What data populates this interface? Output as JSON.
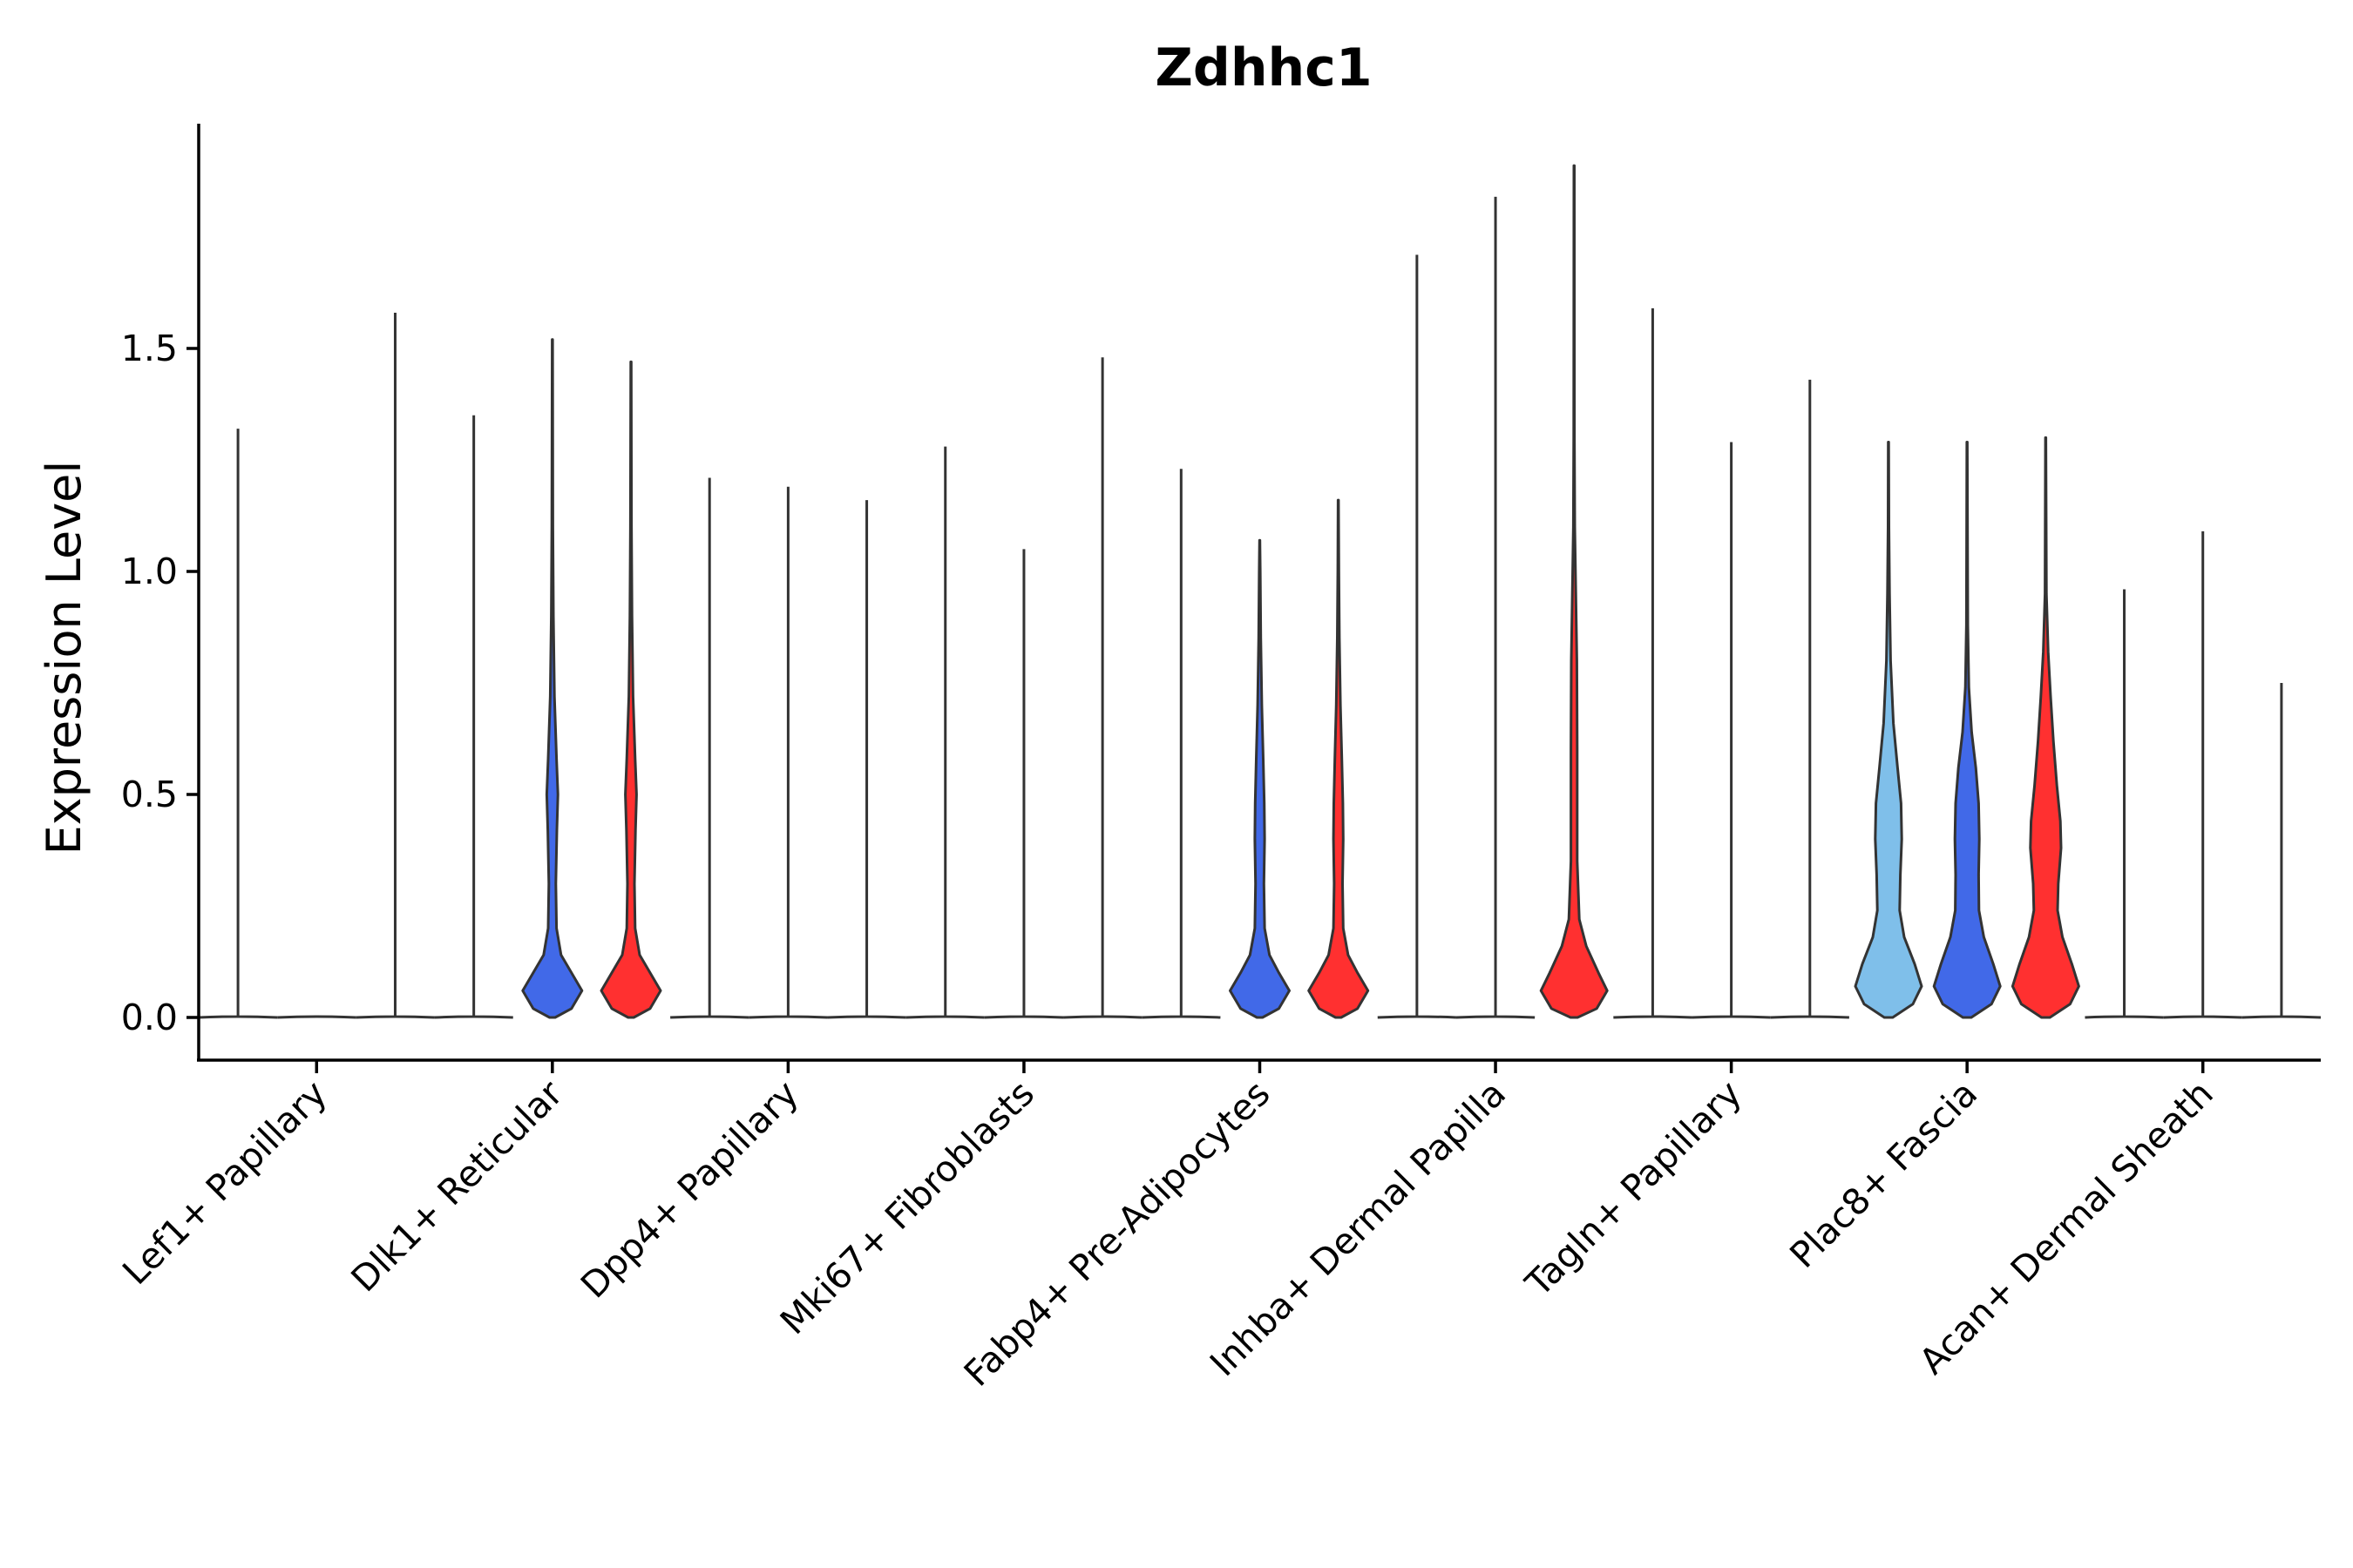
{
  "chart_data": {
    "type": "violin",
    "title": "Zdhhc1",
    "xlabel": "",
    "ylabel": "Expression Level",
    "ylim": [
      -0.1,
      2.0
    ],
    "yticks": [
      0.0,
      0.5,
      1.0,
      1.5
    ],
    "ytick_labels": [
      "0.0",
      "0.5",
      "1.0",
      "1.5"
    ],
    "grid": false,
    "legend": "none",
    "groups_per_category": 3,
    "categories": [
      "Lef1+ Papillary",
      "Dlk1+ Reticular",
      "Dpp4+ Papillary",
      "Mki67+ Fibroblasts",
      "Fabp4+ Pre-Adipocytes",
      "Inhba+ Dermal Papilla",
      "Tagln+ Papillary",
      "Plac8+ Fascia",
      "Acan+ Dermal Sheath"
    ],
    "colors": {
      "light_blue": "#7fbfea",
      "blue": "#4169e8",
      "red": "#ff3030",
      "outline": "#333333"
    },
    "violins": [
      {
        "category": "Lef1+ Papillary",
        "slot": 1,
        "max": 1.32,
        "shape": "flat",
        "fill": "none"
      },
      {
        "category": "Lef1+ Papillary",
        "slot": 2,
        "max": 0.0,
        "shape": "flat",
        "fill": "none"
      },
      {
        "category": "Lef1+ Papillary",
        "slot": 3,
        "max": 1.58,
        "shape": "flat",
        "fill": "none"
      },
      {
        "category": "Dlk1+ Reticular",
        "slot": 1,
        "max": 1.35,
        "shape": "flat",
        "fill": "none"
      },
      {
        "category": "Dlk1+ Reticular",
        "slot": 2,
        "max": 1.52,
        "shape": "A",
        "fill": "blue"
      },
      {
        "category": "Dlk1+ Reticular",
        "slot": 3,
        "max": 1.47,
        "shape": "A",
        "fill": "red"
      },
      {
        "category": "Dpp4+ Papillary",
        "slot": 1,
        "max": 1.21,
        "shape": "flat",
        "fill": "none"
      },
      {
        "category": "Dpp4+ Papillary",
        "slot": 2,
        "max": 1.19,
        "shape": "flat",
        "fill": "none"
      },
      {
        "category": "Dpp4+ Papillary",
        "slot": 3,
        "max": 1.16,
        "shape": "flat",
        "fill": "none"
      },
      {
        "category": "Mki67+ Fibroblasts",
        "slot": 1,
        "max": 1.28,
        "shape": "flat",
        "fill": "none"
      },
      {
        "category": "Mki67+ Fibroblasts",
        "slot": 2,
        "max": 1.05,
        "shape": "flat",
        "fill": "none"
      },
      {
        "category": "Mki67+ Fibroblasts",
        "slot": 3,
        "max": 1.48,
        "shape": "flat",
        "fill": "none"
      },
      {
        "category": "Fabp4+ Pre-Adipocytes",
        "slot": 1,
        "max": 1.23,
        "shape": "flat",
        "fill": "none"
      },
      {
        "category": "Fabp4+ Pre-Adipocytes",
        "slot": 2,
        "max": 1.07,
        "shape": "B",
        "fill": "blue"
      },
      {
        "category": "Fabp4+ Pre-Adipocytes",
        "slot": 3,
        "max": 1.16,
        "shape": "B",
        "fill": "red"
      },
      {
        "category": "Inhba+ Dermal Papilla",
        "slot": 1,
        "max": 1.71,
        "shape": "flat",
        "fill": "none"
      },
      {
        "category": "Inhba+ Dermal Papilla",
        "slot": 2,
        "max": 1.84,
        "shape": "flat",
        "fill": "none"
      },
      {
        "category": "Inhba+ Dermal Papilla",
        "slot": 3,
        "max": 1.91,
        "shape": "C",
        "fill": "red"
      },
      {
        "category": "Tagln+ Papillary",
        "slot": 1,
        "max": 1.59,
        "shape": "flat",
        "fill": "none"
      },
      {
        "category": "Tagln+ Papillary",
        "slot": 2,
        "max": 1.29,
        "shape": "flat",
        "fill": "none"
      },
      {
        "category": "Tagln+ Papillary",
        "slot": 3,
        "max": 1.43,
        "shape": "flat",
        "fill": "none"
      },
      {
        "category": "Plac8+ Fascia",
        "slot": 1,
        "max": 1.29,
        "shape": "D",
        "fill": "light_blue"
      },
      {
        "category": "Plac8+ Fascia",
        "slot": 2,
        "max": 1.29,
        "shape": "E",
        "fill": "blue"
      },
      {
        "category": "Plac8+ Fascia",
        "slot": 3,
        "max": 1.3,
        "shape": "F",
        "fill": "red"
      },
      {
        "category": "Acan+ Dermal Sheath",
        "slot": 1,
        "max": 0.96,
        "shape": "flat",
        "fill": "none"
      },
      {
        "category": "Acan+ Dermal Sheath",
        "slot": 2,
        "max": 1.09,
        "shape": "flat",
        "fill": "none"
      },
      {
        "category": "Acan+ Dermal Sheath",
        "slot": 3,
        "max": 0.75,
        "shape": "flat",
        "fill": "none"
      }
    ]
  }
}
